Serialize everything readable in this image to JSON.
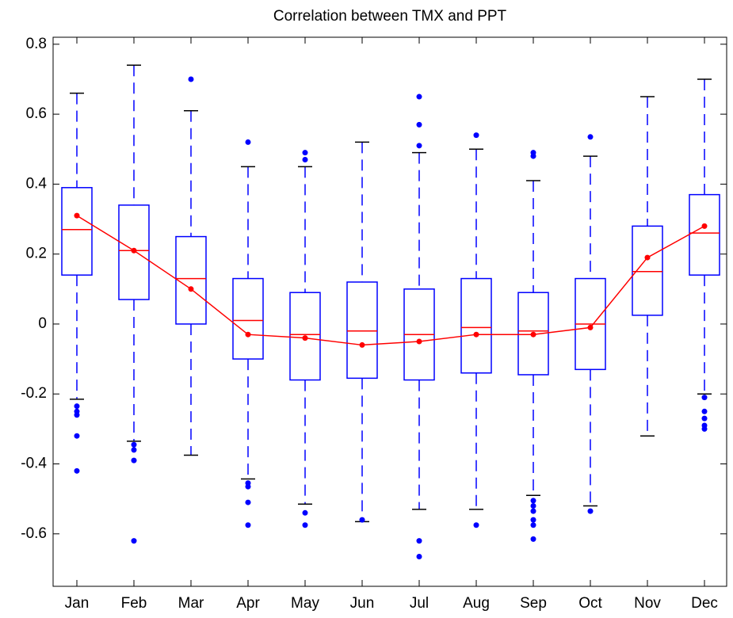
{
  "chart_data": {
    "type": "box",
    "title": "Correlation between TMX and PPT",
    "categories": [
      "Jan",
      "Feb",
      "Mar",
      "Apr",
      "May",
      "Jun",
      "Jul",
      "Aug",
      "Sep",
      "Oct",
      "Nov",
      "Dec"
    ],
    "box_color": "#0000ff",
    "median_color": "#ff0000",
    "cap_color": "#000000",
    "ylim": [
      -0.75,
      0.82
    ],
    "yticks": [
      -0.6,
      -0.4,
      -0.2,
      0,
      0.2,
      0.4,
      0.6,
      0.8
    ],
    "boxes": [
      {
        "whisker_low": -0.215,
        "q1": 0.14,
        "median": 0.27,
        "q3": 0.39,
        "whisker_high": 0.66,
        "outliers": [
          -0.235,
          -0.25,
          -0.26,
          -0.32,
          -0.42
        ]
      },
      {
        "whisker_low": -0.335,
        "q1": 0.07,
        "median": 0.21,
        "q3": 0.34,
        "whisker_high": 0.74,
        "outliers": [
          -0.345,
          -0.36,
          -0.39,
          -0.62
        ]
      },
      {
        "whisker_low": -0.375,
        "q1": 0,
        "median": 0.13,
        "q3": 0.25,
        "whisker_high": 0.61,
        "outliers": [
          0.7
        ]
      },
      {
        "whisker_low": -0.443,
        "q1": -0.1,
        "median": 0.01,
        "q3": 0.13,
        "whisker_high": 0.45,
        "outliers": [
          0.52,
          -0.455,
          -0.465,
          -0.51,
          -0.575
        ]
      },
      {
        "whisker_low": -0.515,
        "q1": -0.16,
        "median": -0.03,
        "q3": 0.09,
        "whisker_high": 0.45,
        "outliers": [
          0.47,
          0.49,
          -0.54,
          -0.575
        ]
      },
      {
        "whisker_low": -0.565,
        "q1": -0.155,
        "median": -0.02,
        "q3": 0.12,
        "whisker_high": 0.52,
        "outliers": [
          -0.56
        ]
      },
      {
        "whisker_low": -0.53,
        "q1": -0.16,
        "median": -0.03,
        "q3": 0.1,
        "whisker_high": 0.49,
        "outliers": [
          0.51,
          0.57,
          0.65,
          -0.62,
          -0.665
        ]
      },
      {
        "whisker_low": -0.53,
        "q1": -0.14,
        "median": -0.01,
        "q3": 0.13,
        "whisker_high": 0.5,
        "outliers": [
          0.54,
          -0.575
        ]
      },
      {
        "whisker_low": -0.49,
        "q1": -0.145,
        "median": -0.02,
        "q3": 0.09,
        "whisker_high": 0.41,
        "outliers": [
          0.48,
          0.49,
          -0.505,
          -0.52,
          -0.535,
          -0.56,
          -0.575,
          -0.615
        ]
      },
      {
        "whisker_low": -0.52,
        "q1": -0.13,
        "median": 0,
        "q3": 0.13,
        "whisker_high": 0.48,
        "outliers": [
          0.535,
          -0.535
        ]
      },
      {
        "whisker_low": -0.32,
        "q1": 0.025,
        "median": 0.15,
        "q3": 0.28,
        "whisker_high": 0.65,
        "outliers": []
      },
      {
        "whisker_low": -0.2,
        "q1": 0.14,
        "median": 0.26,
        "q3": 0.37,
        "whisker_high": 0.7,
        "outliers": [
          -0.21,
          -0.25,
          -0.27,
          -0.29,
          -0.3
        ]
      }
    ],
    "means": [
      0.31,
      0.21,
      0.1,
      -0.03,
      -0.04,
      -0.06,
      -0.05,
      -0.03,
      -0.03,
      -0.01,
      0.19,
      0.28
    ],
    "mean_color": "#ff0000"
  }
}
